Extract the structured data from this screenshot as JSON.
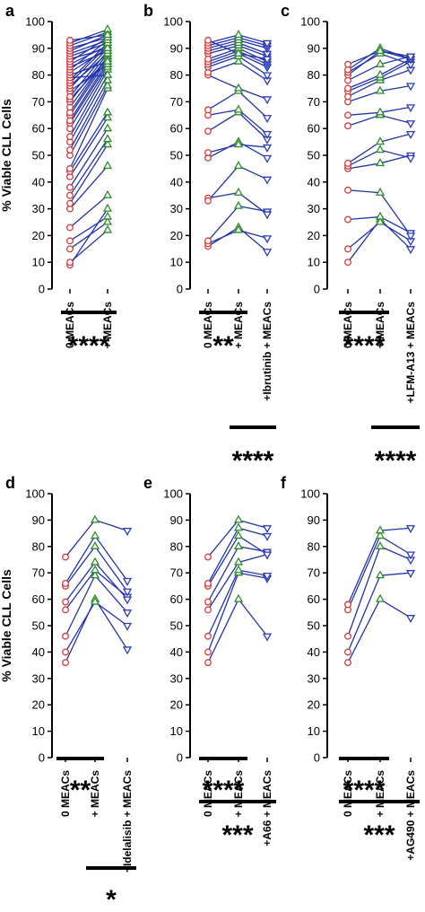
{
  "figure": {
    "y_axis_label": "% Viable CLL Cells",
    "y_ticks": [
      "0",
      "10",
      "20",
      "30",
      "40",
      "50",
      "60",
      "70",
      "80",
      "90",
      "100"
    ]
  },
  "colors": {
    "baseline": "#d23c3c",
    "meacs": "#2e8b2e",
    "inhibitor": "#2a3ab8",
    "line": "#2233aa"
  },
  "chart_data": [
    {
      "panel": "a",
      "type": "scatter",
      "ylim": [
        0,
        100
      ],
      "categories": [
        "0 MEACs",
        "+ MEACs"
      ],
      "series": [
        {
          "values": [
            9,
            30
          ]
        },
        {
          "values": [
            10,
            22
          ]
        },
        {
          "values": [
            15,
            25
          ]
        },
        {
          "values": [
            18,
            27
          ]
        },
        {
          "values": [
            23,
            35
          ]
        },
        {
          "values": [
            30,
            46
          ]
        },
        {
          "values": [
            32,
            54
          ]
        },
        {
          "values": [
            35,
            56
          ]
        },
        {
          "values": [
            38,
            60
          ]
        },
        {
          "values": [
            42,
            64
          ]
        },
        {
          "values": [
            44,
            66
          ]
        },
        {
          "values": [
            45,
            75
          ]
        },
        {
          "values": [
            50,
            76
          ]
        },
        {
          "values": [
            52,
            78
          ]
        },
        {
          "values": [
            55,
            80
          ]
        },
        {
          "values": [
            57,
            82
          ]
        },
        {
          "values": [
            60,
            83
          ]
        },
        {
          "values": [
            62,
            84
          ]
        },
        {
          "values": [
            63,
            85
          ]
        },
        {
          "values": [
            65,
            86
          ]
        },
        {
          "values": [
            66,
            87
          ]
        },
        {
          "values": [
            68,
            87
          ]
        },
        {
          "values": [
            70,
            88
          ]
        },
        {
          "values": [
            71,
            86
          ]
        },
        {
          "values": [
            72,
            89
          ]
        },
        {
          "values": [
            74,
            84
          ]
        },
        {
          "values": [
            75,
            90
          ]
        },
        {
          "values": [
            76,
            88
          ]
        },
        {
          "values": [
            77,
            91
          ]
        },
        {
          "values": [
            78,
            92
          ]
        },
        {
          "values": [
            79,
            80
          ]
        },
        {
          "values": [
            80,
            85
          ]
        },
        {
          "values": [
            81,
            90
          ]
        },
        {
          "values": [
            82,
            93
          ]
        },
        {
          "values": [
            83,
            89
          ]
        },
        {
          "values": [
            84,
            91
          ]
        },
        {
          "values": [
            85,
            94
          ]
        },
        {
          "values": [
            86,
            90
          ]
        },
        {
          "values": [
            87,
            92
          ]
        },
        {
          "values": [
            88,
            93
          ]
        },
        {
          "values": [
            89,
            95
          ]
        },
        {
          "values": [
            90,
            94
          ]
        },
        {
          "values": [
            91,
            96
          ]
        },
        {
          "values": [
            92,
            97
          ]
        },
        {
          "values": [
            93,
            95
          ]
        }
      ],
      "significance": [
        {
          "from": 0,
          "to": 1,
          "label": "****"
        }
      ]
    },
    {
      "panel": "b",
      "type": "scatter",
      "ylim": [
        0,
        100
      ],
      "categories": [
        "0 MEACs",
        "+ MEACs",
        "+Ibrutinib + MEACs"
      ],
      "series": [
        {
          "values": [
            16,
            23,
            14
          ]
        },
        {
          "values": [
            17,
            22,
            19
          ]
        },
        {
          "values": [
            18,
            31,
            29
          ]
        },
        {
          "values": [
            34,
            36,
            28
          ]
        },
        {
          "values": [
            33,
            46,
            41
          ]
        },
        {
          "values": [
            49,
            55,
            49
          ]
        },
        {
          "values": [
            51,
            54,
            53
          ]
        },
        {
          "values": [
            59,
            66,
            56
          ]
        },
        {
          "values": [
            65,
            67,
            58
          ]
        },
        {
          "values": [
            67,
            74,
            64
          ]
        },
        {
          "values": [
            80,
            75,
            71
          ]
        },
        {
          "values": [
            81,
            85,
            78
          ]
        },
        {
          "values": [
            83,
            87,
            80
          ]
        },
        {
          "values": [
            84,
            88,
            83
          ]
        },
        {
          "values": [
            85,
            89,
            84
          ]
        },
        {
          "values": [
            86,
            90,
            85
          ]
        },
        {
          "values": [
            88,
            91,
            87
          ]
        },
        {
          "values": [
            89,
            92,
            88
          ]
        },
        {
          "values": [
            90,
            93,
            90
          ]
        },
        {
          "values": [
            91,
            94,
            91
          ]
        },
        {
          "values": [
            92,
            95,
            92
          ]
        },
        {
          "values": [
            93,
            88,
            86
          ]
        }
      ],
      "significance": [
        {
          "from": 0,
          "to": 1,
          "label": "**"
        },
        {
          "from": 1,
          "to": 2,
          "label": "****"
        }
      ]
    },
    {
      "panel": "c",
      "type": "scatter",
      "ylim": [
        0,
        100
      ],
      "categories": [
        "0 MEACs",
        "+ MEACs",
        "+LFM-A13 + MEACs"
      ],
      "series": [
        {
          "values": [
            10,
            26,
            15
          ]
        },
        {
          "values": [
            15,
            25,
            18
          ]
        },
        {
          "values": [
            26,
            27,
            21
          ]
        },
        {
          "values": [
            37,
            36,
            20
          ]
        },
        {
          "values": [
            45,
            47,
            50
          ]
        },
        {
          "values": [
            46,
            52,
            49
          ]
        },
        {
          "values": [
            47,
            55,
            58
          ]
        },
        {
          "values": [
            61,
            65,
            62
          ]
        },
        {
          "values": [
            65,
            66,
            68
          ]
        },
        {
          "values": [
            70,
            74,
            76
          ]
        },
        {
          "values": [
            72,
            78,
            82
          ]
        },
        {
          "values": [
            74,
            79,
            85
          ]
        },
        {
          "values": [
            75,
            80,
            86
          ]
        },
        {
          "values": [
            78,
            84,
            87
          ]
        },
        {
          "values": [
            80,
            89,
            86
          ]
        },
        {
          "values": [
            81,
            88,
            84
          ]
        },
        {
          "values": [
            82,
            90,
            86
          ]
        },
        {
          "values": [
            84,
            89,
            87
          ]
        }
      ],
      "significance": [
        {
          "from": 0,
          "to": 1,
          "label": "****"
        },
        {
          "from": 1,
          "to": 2,
          "label": "****"
        }
      ]
    },
    {
      "panel": "d",
      "type": "scatter",
      "ylim": [
        0,
        100
      ],
      "categories": [
        "0 MEACs",
        "+ MEACs",
        "+Idelalisib + MEACs"
      ],
      "series": [
        {
          "values": [
            36,
            60,
            41
          ]
        },
        {
          "values": [
            40,
            59,
            50
          ]
        },
        {
          "values": [
            46,
            69,
            55
          ]
        },
        {
          "values": [
            56,
            71,
            61
          ]
        },
        {
          "values": [
            59,
            74,
            60
          ]
        },
        {
          "values": [
            65,
            80,
            63
          ]
        },
        {
          "values": [
            66,
            84,
            67
          ]
        },
        {
          "values": [
            76,
            90,
            86
          ]
        }
      ],
      "significance": [
        {
          "from": 0,
          "to": 1,
          "label": "**"
        },
        {
          "from": 1,
          "to": 2,
          "label": "*"
        }
      ]
    },
    {
      "panel": "e",
      "type": "scatter",
      "ylim": [
        0,
        100
      ],
      "categories": [
        "0 MEACs",
        "+ MEACs",
        "+A66 + MEACs"
      ],
      "series": [
        {
          "values": [
            36,
            60,
            46
          ]
        },
        {
          "values": [
            40,
            70,
            68
          ]
        },
        {
          "values": [
            46,
            71,
            69
          ]
        },
        {
          "values": [
            56,
            74,
            77
          ]
        },
        {
          "values": [
            59,
            80,
            78
          ]
        },
        {
          "values": [
            65,
            84,
            77
          ]
        },
        {
          "values": [
            66,
            87,
            84
          ]
        },
        {
          "values": [
            76,
            90,
            87
          ]
        }
      ],
      "significance": [
        {
          "from": 0,
          "to": 1,
          "label": "****"
        },
        {
          "from": 0,
          "to": 2,
          "label": "***"
        }
      ]
    },
    {
      "panel": "f",
      "type": "scatter",
      "ylim": [
        0,
        100
      ],
      "categories": [
        "0 MEACs",
        "+ MEACs",
        "+AG490 + MEACs"
      ],
      "series": [
        {
          "values": [
            36,
            60,
            53
          ]
        },
        {
          "values": [
            40,
            69,
            70
          ]
        },
        {
          "values": [
            46,
            80,
            75
          ]
        },
        {
          "values": [
            56,
            84,
            77
          ]
        },
        {
          "values": [
            58,
            86,
            87
          ]
        }
      ],
      "significance": [
        {
          "from": 0,
          "to": 1,
          "label": "****"
        },
        {
          "from": 0,
          "to": 2,
          "label": "***"
        }
      ]
    }
  ]
}
